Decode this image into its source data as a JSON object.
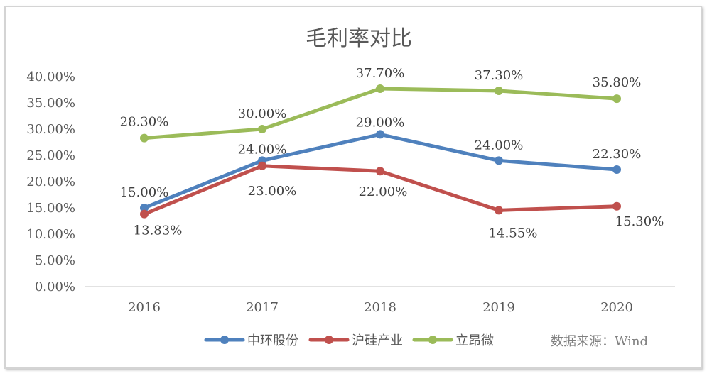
{
  "chart_data": {
    "type": "line",
    "title": "毛利率对比",
    "categories": [
      "2016",
      "2017",
      "2018",
      "2019",
      "2020"
    ],
    "ylim": [
      0,
      40
    ],
    "yticks": [
      0,
      5,
      10,
      15,
      20,
      25,
      30,
      35,
      40
    ],
    "ytick_labels": [
      "0.00%",
      "5.00%",
      "10.00%",
      "15.00%",
      "20.00%",
      "25.00%",
      "30.00%",
      "35.00%",
      "40.00%"
    ],
    "grid": false,
    "legend_position": "bottom",
    "series": [
      {
        "name": "中环股份",
        "color": "#4f81bd",
        "values": [
          15.0,
          24.0,
          29.0,
          24.0,
          22.3
        ],
        "labels": [
          "15.00%",
          "24.00%",
          "29.00%",
          "24.00%",
          "22.30%"
        ]
      },
      {
        "name": "沪硅产业",
        "color": "#c0504d",
        "values": [
          13.83,
          23.0,
          22.0,
          14.55,
          15.3
        ],
        "labels": [
          "13.83%",
          "23.00%",
          "22.00%",
          "14.55%",
          "15.30%"
        ]
      },
      {
        "name": "立昂微",
        "color": "#9bbb59",
        "values": [
          28.3,
          30.0,
          37.7,
          37.3,
          35.8
        ],
        "labels": [
          "28.30%",
          "30.00%",
          "37.70%",
          "37.30%",
          "35.80%"
        ]
      }
    ],
    "source_note": "数据来源：Wind"
  }
}
